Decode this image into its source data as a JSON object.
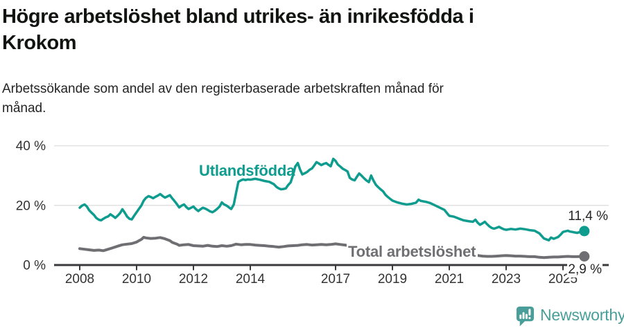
{
  "header": {
    "title": "Högre arbetslöshet bland utrikes- än inrikesfödda i Krokom",
    "subtitle": "Arbetssökande som andel av den registerbaserade arbetskraften månad för månad."
  },
  "chart_data": {
    "type": "line",
    "title": "Högre arbetslöshet bland utrikes- än inrikesfödda i Krokom",
    "unit": "%",
    "grid": "horizontal",
    "legend_position": "inline-labels",
    "x_axis": {
      "min": 2008,
      "max": 2025.9,
      "ticks": [
        {
          "year": 2008,
          "label": "2008"
        },
        {
          "year": 2010,
          "label": "2010"
        },
        {
          "year": 2012,
          "label": "2012"
        },
        {
          "year": 2014,
          "label": "2014"
        },
        {
          "year": 2017,
          "label": "2017"
        },
        {
          "year": 2019,
          "label": "2019"
        },
        {
          "year": 2021,
          "label": "2021"
        },
        {
          "year": 2023,
          "label": "2023"
        },
        {
          "year": 2025,
          "label": "2025"
        }
      ]
    },
    "y_axis": {
      "min": 0,
      "max": 40,
      "ticks": [
        {
          "value": 0,
          "label": "0 %"
        },
        {
          "value": 20,
          "label": "20 %"
        },
        {
          "value": 40,
          "label": "40 %"
        }
      ]
    },
    "series": [
      {
        "name": "Utlandsfödda",
        "color": "#0E9C8F",
        "end_label": "11,4 %",
        "end_value": 11.4,
        "points": [
          [
            2008.0,
            19.2
          ],
          [
            2008.08,
            19.9
          ],
          [
            2008.17,
            20.3
          ],
          [
            2008.25,
            19.6
          ],
          [
            2008.33,
            18.4
          ],
          [
            2008.42,
            17.5
          ],
          [
            2008.5,
            16.8
          ],
          [
            2008.58,
            15.8
          ],
          [
            2008.67,
            15.2
          ],
          [
            2008.75,
            15.0
          ],
          [
            2008.83,
            15.5
          ],
          [
            2008.92,
            16.0
          ],
          [
            2009.0,
            16.3
          ],
          [
            2009.08,
            17.0
          ],
          [
            2009.17,
            16.4
          ],
          [
            2009.25,
            15.8
          ],
          [
            2009.33,
            16.5
          ],
          [
            2009.42,
            17.4
          ],
          [
            2009.5,
            18.7
          ],
          [
            2009.58,
            17.6
          ],
          [
            2009.67,
            16.2
          ],
          [
            2009.75,
            15.5
          ],
          [
            2009.83,
            15.3
          ],
          [
            2009.92,
            16.6
          ],
          [
            2010.0,
            17.7
          ],
          [
            2010.08,
            18.8
          ],
          [
            2010.17,
            20.0
          ],
          [
            2010.25,
            21.6
          ],
          [
            2010.33,
            22.5
          ],
          [
            2010.42,
            23.1
          ],
          [
            2010.5,
            22.8
          ],
          [
            2010.58,
            22.4
          ],
          [
            2010.67,
            22.9
          ],
          [
            2010.75,
            23.3
          ],
          [
            2010.83,
            23.8
          ],
          [
            2010.92,
            23.1
          ],
          [
            2011.0,
            22.6
          ],
          [
            2011.08,
            23.0
          ],
          [
            2011.17,
            23.4
          ],
          [
            2011.25,
            22.4
          ],
          [
            2011.33,
            21.5
          ],
          [
            2011.42,
            20.4
          ],
          [
            2011.5,
            19.3
          ],
          [
            2011.58,
            19.9
          ],
          [
            2011.67,
            20.3
          ],
          [
            2011.75,
            19.4
          ],
          [
            2011.83,
            18.8
          ],
          [
            2011.92,
            19.2
          ],
          [
            2012.0,
            19.6
          ],
          [
            2012.08,
            18.8
          ],
          [
            2012.17,
            18.1
          ],
          [
            2012.25,
            18.7
          ],
          [
            2012.33,
            19.2
          ],
          [
            2012.42,
            18.9
          ],
          [
            2012.5,
            18.5
          ],
          [
            2012.58,
            18.0
          ],
          [
            2012.67,
            17.7
          ],
          [
            2012.75,
            18.2
          ],
          [
            2012.83,
            18.8
          ],
          [
            2012.92,
            19.6
          ],
          [
            2013.0,
            21.0
          ],
          [
            2013.08,
            20.3
          ],
          [
            2013.17,
            19.9
          ],
          [
            2013.25,
            19.3
          ],
          [
            2013.33,
            18.8
          ],
          [
            2013.42,
            20.3
          ],
          [
            2013.5,
            24.2
          ],
          [
            2013.58,
            27.9
          ],
          [
            2013.67,
            28.4
          ],
          [
            2013.75,
            28.7
          ],
          [
            2013.83,
            28.5
          ],
          [
            2013.92,
            28.7
          ],
          [
            2014.0,
            28.6
          ],
          [
            2014.17,
            28.9
          ],
          [
            2014.33,
            28.6
          ],
          [
            2014.5,
            28.2
          ],
          [
            2014.67,
            27.9
          ],
          [
            2014.83,
            27.1
          ],
          [
            2014.92,
            26.2
          ],
          [
            2015.0,
            25.7
          ],
          [
            2015.08,
            25.4
          ],
          [
            2015.17,
            25.5
          ],
          [
            2015.25,
            25.7
          ],
          [
            2015.33,
            26.8
          ],
          [
            2015.42,
            27.7
          ],
          [
            2015.5,
            30.1
          ],
          [
            2015.58,
            33.0
          ],
          [
            2015.67,
            34.2
          ],
          [
            2015.75,
            32.0
          ],
          [
            2015.83,
            30.4
          ],
          [
            2015.92,
            30.8
          ],
          [
            2016.0,
            31.2
          ],
          [
            2016.08,
            31.9
          ],
          [
            2016.17,
            32.4
          ],
          [
            2016.25,
            33.4
          ],
          [
            2016.33,
            34.5
          ],
          [
            2016.42,
            34.0
          ],
          [
            2016.5,
            33.5
          ],
          [
            2016.58,
            33.9
          ],
          [
            2016.67,
            34.2
          ],
          [
            2016.75,
            33.6
          ],
          [
            2016.83,
            33.1
          ],
          [
            2016.92,
            35.6
          ],
          [
            2017.0,
            34.9
          ],
          [
            2017.08,
            33.7
          ],
          [
            2017.17,
            33.0
          ],
          [
            2017.25,
            32.3
          ],
          [
            2017.33,
            31.9
          ],
          [
            2017.42,
            31.4
          ],
          [
            2017.5,
            29.2
          ],
          [
            2017.58,
            28.7
          ],
          [
            2017.67,
            28.4
          ],
          [
            2017.75,
            29.6
          ],
          [
            2017.83,
            30.7
          ],
          [
            2017.92,
            29.9
          ],
          [
            2018.0,
            29.1
          ],
          [
            2018.08,
            28.4
          ],
          [
            2018.17,
            27.8
          ],
          [
            2018.25,
            30.0
          ],
          [
            2018.33,
            28.4
          ],
          [
            2018.42,
            26.9
          ],
          [
            2018.5,
            26.1
          ],
          [
            2018.58,
            25.4
          ],
          [
            2018.67,
            24.7
          ],
          [
            2018.75,
            23.6
          ],
          [
            2018.83,
            22.9
          ],
          [
            2018.92,
            22.2
          ],
          [
            2019.0,
            21.6
          ],
          [
            2019.17,
            21.0
          ],
          [
            2019.33,
            20.6
          ],
          [
            2019.5,
            20.3
          ],
          [
            2019.67,
            20.5
          ],
          [
            2019.83,
            20.9
          ],
          [
            2019.92,
            21.9
          ],
          [
            2020.0,
            21.5
          ],
          [
            2020.17,
            21.2
          ],
          [
            2020.33,
            20.8
          ],
          [
            2020.5,
            20.0
          ],
          [
            2020.67,
            19.2
          ],
          [
            2020.83,
            18.5
          ],
          [
            2020.92,
            17.4
          ],
          [
            2021.0,
            16.5
          ],
          [
            2021.17,
            16.2
          ],
          [
            2021.33,
            15.6
          ],
          [
            2021.5,
            15.0
          ],
          [
            2021.67,
            14.7
          ],
          [
            2021.83,
            14.5
          ],
          [
            2021.92,
            15.2
          ],
          [
            2022.0,
            14.2
          ],
          [
            2022.08,
            13.5
          ],
          [
            2022.17,
            14.0
          ],
          [
            2022.25,
            14.5
          ],
          [
            2022.33,
            13.7
          ],
          [
            2022.42,
            12.9
          ],
          [
            2022.5,
            12.4
          ],
          [
            2022.58,
            12.2
          ],
          [
            2022.67,
            12.5
          ],
          [
            2022.75,
            12.8
          ],
          [
            2022.83,
            12.4
          ],
          [
            2022.92,
            12.0
          ],
          [
            2023.0,
            11.8
          ],
          [
            2023.17,
            12.1
          ],
          [
            2023.33,
            11.9
          ],
          [
            2023.5,
            12.2
          ],
          [
            2023.67,
            12.0
          ],
          [
            2023.83,
            11.7
          ],
          [
            2024.0,
            11.5
          ],
          [
            2024.17,
            10.6
          ],
          [
            2024.33,
            8.9
          ],
          [
            2024.5,
            8.3
          ],
          [
            2024.58,
            9.2
          ],
          [
            2024.67,
            8.8
          ],
          [
            2024.83,
            9.4
          ],
          [
            2024.92,
            10.2
          ],
          [
            2025.0,
            11.1
          ],
          [
            2025.08,
            11.3
          ],
          [
            2025.17,
            11.5
          ],
          [
            2025.25,
            11.2
          ],
          [
            2025.33,
            11.1
          ],
          [
            2025.42,
            10.9
          ],
          [
            2025.5,
            10.8
          ],
          [
            2025.58,
            11.0
          ],
          [
            2025.75,
            11.4
          ]
        ]
      },
      {
        "name": "Total arbetslöshet",
        "color": "#6F6F73",
        "end_label": "2,9 %",
        "end_value": 2.9,
        "points": [
          [
            2008.0,
            5.5
          ],
          [
            2008.17,
            5.3
          ],
          [
            2008.33,
            5.1
          ],
          [
            2008.5,
            4.9
          ],
          [
            2008.67,
            5.0
          ],
          [
            2008.83,
            4.8
          ],
          [
            2009.0,
            5.3
          ],
          [
            2009.17,
            5.8
          ],
          [
            2009.33,
            6.3
          ],
          [
            2009.5,
            6.8
          ],
          [
            2009.67,
            7.0
          ],
          [
            2009.83,
            7.2
          ],
          [
            2010.0,
            7.7
          ],
          [
            2010.17,
            8.6
          ],
          [
            2010.25,
            9.3
          ],
          [
            2010.33,
            9.1
          ],
          [
            2010.5,
            8.9
          ],
          [
            2010.67,
            9.0
          ],
          [
            2010.83,
            9.2
          ],
          [
            2010.92,
            9.0
          ],
          [
            2011.0,
            8.8
          ],
          [
            2011.17,
            8.2
          ],
          [
            2011.25,
            7.6
          ],
          [
            2011.42,
            7.0
          ],
          [
            2011.5,
            6.6
          ],
          [
            2011.67,
            6.8
          ],
          [
            2011.83,
            6.9
          ],
          [
            2012.0,
            6.5
          ],
          [
            2012.17,
            6.4
          ],
          [
            2012.33,
            6.3
          ],
          [
            2012.5,
            6.6
          ],
          [
            2012.67,
            6.3
          ],
          [
            2012.83,
            6.2
          ],
          [
            2013.0,
            6.5
          ],
          [
            2013.17,
            6.3
          ],
          [
            2013.33,
            6.5
          ],
          [
            2013.5,
            7.0
          ],
          [
            2013.67,
            6.8
          ],
          [
            2013.83,
            6.9
          ],
          [
            2014.0,
            6.9
          ],
          [
            2014.17,
            6.7
          ],
          [
            2014.33,
            6.6
          ],
          [
            2014.5,
            6.5
          ],
          [
            2014.67,
            6.3
          ],
          [
            2014.83,
            6.2
          ],
          [
            2015.0,
            6.0
          ],
          [
            2015.17,
            6.2
          ],
          [
            2015.33,
            6.4
          ],
          [
            2015.5,
            6.5
          ],
          [
            2015.67,
            6.6
          ],
          [
            2015.83,
            6.8
          ],
          [
            2016.0,
            6.9
          ],
          [
            2016.17,
            6.7
          ],
          [
            2016.33,
            6.8
          ],
          [
            2016.5,
            6.9
          ],
          [
            2016.67,
            6.8
          ],
          [
            2016.83,
            6.9
          ],
          [
            2017.0,
            7.1
          ],
          [
            2017.17,
            6.9
          ],
          [
            2017.33,
            6.7
          ],
          [
            2017.5,
            6.5
          ],
          [
            2017.75,
            6.3
          ],
          [
            2018.0,
            6.1
          ],
          [
            2018.25,
            5.8
          ],
          [
            2018.5,
            5.6
          ],
          [
            2018.75,
            5.3
          ],
          [
            2019.0,
            5.1
          ],
          [
            2019.25,
            4.9
          ],
          [
            2019.5,
            4.8
          ],
          [
            2019.75,
            4.9
          ],
          [
            2020.0,
            5.0
          ],
          [
            2020.25,
            5.4
          ],
          [
            2020.5,
            5.2
          ],
          [
            2020.75,
            4.9
          ],
          [
            2021.0,
            4.6
          ],
          [
            2021.25,
            4.2
          ],
          [
            2021.5,
            3.9
          ],
          [
            2021.75,
            3.5
          ],
          [
            2022.0,
            3.2
          ],
          [
            2022.17,
            3.0
          ],
          [
            2022.33,
            2.9
          ],
          [
            2022.5,
            2.9
          ],
          [
            2022.67,
            3.0
          ],
          [
            2022.83,
            3.1
          ],
          [
            2023.0,
            3.2
          ],
          [
            2023.17,
            3.1
          ],
          [
            2023.33,
            3.0
          ],
          [
            2023.5,
            3.0
          ],
          [
            2023.67,
            2.9
          ],
          [
            2023.83,
            2.8
          ],
          [
            2024.0,
            2.8
          ],
          [
            2024.17,
            2.6
          ],
          [
            2024.33,
            2.5
          ],
          [
            2024.5,
            2.6
          ],
          [
            2024.67,
            2.7
          ],
          [
            2024.83,
            2.7
          ],
          [
            2025.0,
            2.8
          ],
          [
            2025.17,
            2.9
          ],
          [
            2025.33,
            2.8
          ],
          [
            2025.5,
            2.8
          ],
          [
            2025.75,
            2.9
          ]
        ]
      }
    ],
    "colors": {
      "axis": "#3A3A3D",
      "tick_text": "#333333",
      "gridline": "#E1E1E1",
      "end_label_text": "#242424"
    }
  },
  "footer": {
    "brand": "Newsworthy",
    "brand_color": "#4A9E99"
  }
}
